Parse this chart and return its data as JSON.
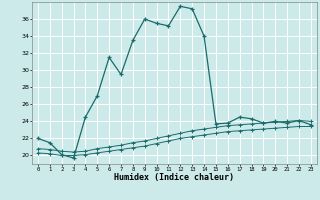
{
  "xlabel": "Humidex (Indice chaleur)",
  "bg_color": "#cceaea",
  "line_color": "#1a6b6b",
  "grid_color": "#ffffff",
  "xlim": [
    -0.5,
    23.5
  ],
  "ylim": [
    19.0,
    38.0
  ],
  "yticks": [
    20,
    22,
    24,
    26,
    28,
    30,
    32,
    34,
    36
  ],
  "xticks": [
    0,
    1,
    2,
    3,
    4,
    5,
    6,
    7,
    8,
    9,
    10,
    11,
    12,
    13,
    14,
    15,
    16,
    17,
    18,
    19,
    20,
    21,
    22,
    23
  ],
  "curve1_x": [
    0,
    1,
    2,
    3,
    4,
    5,
    6,
    7,
    8,
    9,
    10,
    11,
    12,
    13,
    14,
    15,
    16,
    17,
    18,
    19,
    20,
    21,
    22,
    23
  ],
  "curve1_y": [
    22.0,
    21.5,
    20.1,
    19.7,
    24.5,
    27.0,
    31.5,
    29.5,
    33.5,
    36.0,
    35.5,
    35.2,
    37.5,
    37.2,
    34.0,
    23.7,
    23.8,
    24.5,
    24.3,
    23.8,
    24.0,
    23.8,
    24.1,
    23.6
  ],
  "curve2_x": [
    0,
    1,
    2,
    3,
    4,
    5,
    6,
    7,
    8,
    9,
    10,
    11,
    12,
    13,
    14,
    15,
    16,
    17,
    18,
    19,
    20,
    21,
    22,
    23
  ],
  "curve2_y": [
    20.8,
    20.7,
    20.5,
    20.4,
    20.5,
    20.8,
    21.0,
    21.2,
    21.5,
    21.7,
    22.0,
    22.3,
    22.6,
    22.9,
    23.1,
    23.3,
    23.5,
    23.6,
    23.7,
    23.8,
    23.9,
    24.0,
    24.1,
    24.0
  ],
  "curve3_x": [
    0,
    1,
    2,
    3,
    4,
    5,
    6,
    7,
    8,
    9,
    10,
    11,
    12,
    13,
    14,
    15,
    16,
    17,
    18,
    19,
    20,
    21,
    22,
    23
  ],
  "curve3_y": [
    20.3,
    20.2,
    20.0,
    20.0,
    20.1,
    20.3,
    20.5,
    20.7,
    20.9,
    21.1,
    21.4,
    21.7,
    22.0,
    22.2,
    22.4,
    22.6,
    22.8,
    22.9,
    23.0,
    23.1,
    23.2,
    23.3,
    23.4,
    23.4
  ]
}
